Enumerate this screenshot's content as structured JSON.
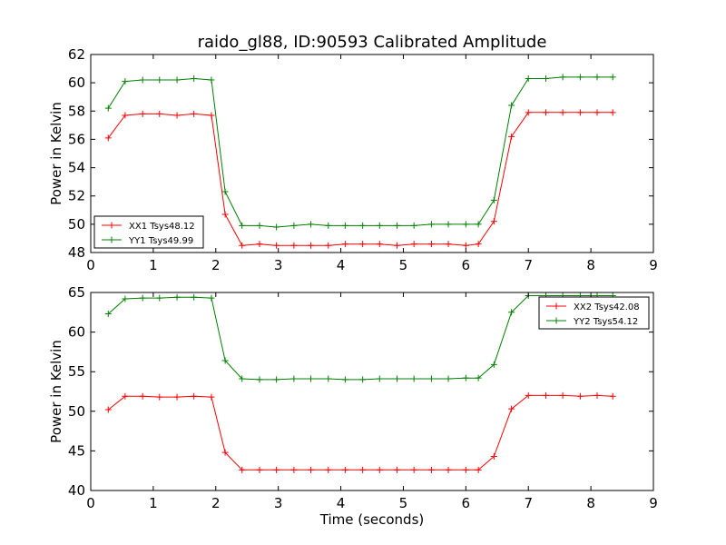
{
  "figure_title": "raido_gl88, ID:90593 Calibrated Amplitude",
  "chart_data": [
    {
      "type": "line",
      "ylabel": "Power in Kelvin",
      "xlabel": "",
      "xlim": [
        0,
        9
      ],
      "ylim": [
        48,
        62
      ],
      "xticks": [
        0,
        1,
        2,
        3,
        4,
        5,
        6,
        7,
        8,
        9
      ],
      "yticks": [
        48,
        50,
        52,
        54,
        56,
        58,
        60,
        62
      ],
      "grid": false,
      "legend_position": "lower-left",
      "x": [
        0.28,
        0.55,
        0.83,
        1.1,
        1.38,
        1.65,
        1.93,
        2.15,
        2.42,
        2.7,
        2.97,
        3.25,
        3.52,
        3.8,
        4.07,
        4.35,
        4.62,
        4.9,
        5.17,
        5.45,
        5.72,
        6.0,
        6.2,
        6.45,
        6.73,
        7.0,
        7.28,
        7.55,
        7.83,
        8.1,
        8.35
      ],
      "series": [
        {
          "name": "XX1 Tsys48.12",
          "color": "#ff0000",
          "values": [
            56.1,
            57.7,
            57.8,
            57.8,
            57.7,
            57.8,
            57.7,
            50.7,
            48.5,
            48.6,
            48.5,
            48.5,
            48.5,
            48.5,
            48.6,
            48.6,
            48.6,
            48.5,
            48.6,
            48.6,
            48.6,
            48.5,
            48.6,
            50.2,
            56.2,
            57.9,
            57.9,
            57.9,
            57.9,
            57.9,
            57.9
          ]
        },
        {
          "name": "YY1 Tsys49.99",
          "color": "#008000",
          "values": [
            58.2,
            60.1,
            60.2,
            60.2,
            60.2,
            60.3,
            60.2,
            52.3,
            49.9,
            49.9,
            49.8,
            49.9,
            50.0,
            49.9,
            49.9,
            49.9,
            49.9,
            49.9,
            49.9,
            50.0,
            50.0,
            50.0,
            50.0,
            51.7,
            58.4,
            60.3,
            60.3,
            60.4,
            60.4,
            60.4,
            60.4
          ]
        }
      ]
    },
    {
      "type": "line",
      "ylabel": "Power in Kelvin",
      "xlabel": "Time (seconds)",
      "xlim": [
        0,
        9
      ],
      "ylim": [
        40,
        65
      ],
      "xticks": [
        0,
        1,
        2,
        3,
        4,
        5,
        6,
        7,
        8,
        9
      ],
      "yticks": [
        40,
        45,
        50,
        55,
        60,
        65
      ],
      "grid": false,
      "legend_position": "upper-right",
      "x": [
        0.28,
        0.55,
        0.83,
        1.1,
        1.38,
        1.65,
        1.93,
        2.15,
        2.42,
        2.7,
        2.97,
        3.25,
        3.52,
        3.8,
        4.07,
        4.35,
        4.62,
        4.9,
        5.17,
        5.45,
        5.72,
        6.0,
        6.2,
        6.45,
        6.73,
        7.0,
        7.28,
        7.55,
        7.83,
        8.1,
        8.35
      ],
      "series": [
        {
          "name": "XX2 Tsys42.08",
          "color": "#ff0000",
          "values": [
            50.2,
            51.9,
            51.9,
            51.8,
            51.8,
            51.9,
            51.8,
            44.8,
            42.6,
            42.6,
            42.6,
            42.6,
            42.6,
            42.6,
            42.6,
            42.6,
            42.6,
            42.6,
            42.6,
            42.6,
            42.6,
            42.6,
            42.6,
            44.3,
            50.3,
            52.0,
            52.0,
            52.0,
            51.9,
            52.0,
            51.9
          ]
        },
        {
          "name": "YY2 Tsys54.12",
          "color": "#008000",
          "values": [
            62.3,
            64.2,
            64.3,
            64.3,
            64.4,
            64.4,
            64.3,
            56.4,
            54.1,
            54.0,
            54.0,
            54.1,
            54.1,
            54.1,
            54.0,
            54.0,
            54.1,
            54.1,
            54.1,
            54.1,
            54.1,
            54.2,
            54.2,
            55.9,
            62.5,
            64.6,
            64.6,
            64.6,
            64.6,
            64.6,
            64.6
          ]
        }
      ]
    }
  ]
}
